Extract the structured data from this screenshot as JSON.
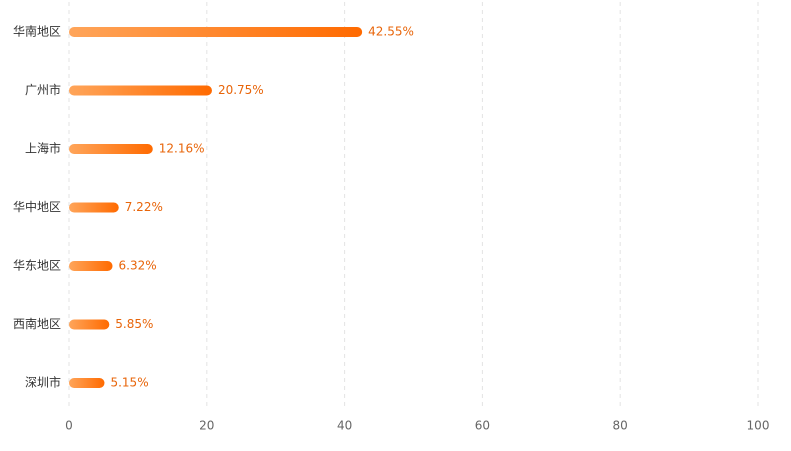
{
  "chart_data": {
    "type": "bar",
    "orientation": "horizontal",
    "categories": [
      "华南地区",
      "广州市",
      "上海市",
      "华中地区",
      "华东地区",
      "西南地区",
      "深圳市"
    ],
    "values": [
      42.55,
      20.75,
      12.16,
      7.22,
      6.32,
      5.85,
      5.15
    ],
    "value_labels": [
      "42.55%",
      "20.75%",
      "12.16%",
      "7.22%",
      "6.32%",
      "5.85%",
      "5.15%"
    ],
    "colors": [
      "#ffa55a",
      "#ff6a00"
    ],
    "label_color": "#e8650a",
    "xlim": [
      0,
      100
    ],
    "xticks": [
      0,
      20,
      40,
      60,
      80,
      100
    ],
    "grid": true
  }
}
